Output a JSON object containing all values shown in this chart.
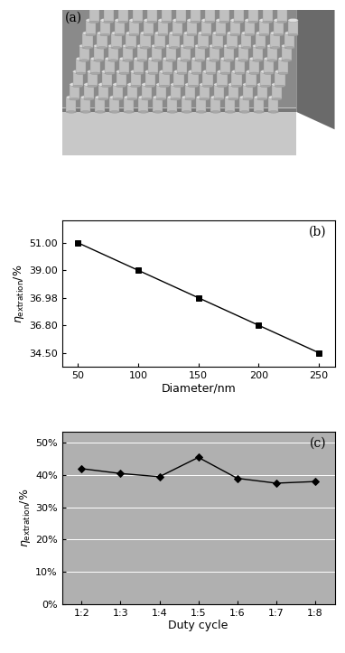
{
  "panel_b": {
    "x": [
      50,
      100,
      150,
      200,
      250
    ],
    "y": [
      4,
      3,
      2,
      1,
      0
    ],
    "ytick_positions": [
      0,
      1,
      2,
      3,
      4
    ],
    "ytick_labels": [
      "34.50",
      "36.80",
      "36.98",
      "39.00",
      "51.00"
    ],
    "xticks": [
      50,
      100,
      150,
      200,
      250
    ],
    "xlabel": "Diameter/nm",
    "label": "(b)",
    "ylim_bottom": -0.5,
    "ylim_top": 4.8
  },
  "panel_c": {
    "x": [
      0,
      1,
      2,
      3,
      4,
      5,
      6
    ],
    "y": [
      0.42,
      0.405,
      0.395,
      0.455,
      0.39,
      0.375,
      0.38
    ],
    "xtick_labels": [
      "1:2",
      "1:3",
      "1:4",
      "1:5",
      "1:6",
      "1:7",
      "1:8"
    ],
    "yticks": [
      0.0,
      0.1,
      0.2,
      0.3,
      0.4,
      0.5
    ],
    "ytick_labels": [
      "0%",
      "10%",
      "20%",
      "30%",
      "40%",
      "50%"
    ],
    "xlabel": "Duty cycle",
    "label": "(c)",
    "ylim_bottom": 0.0,
    "ylim_top": 0.535,
    "bg_color": "#b0b0b0"
  },
  "panel_a": {
    "label": "(a)",
    "dark_bg": "#8a8a8a",
    "right_wedge": "#6a6a6a",
    "light_base": "#c8c8c8",
    "pillar_body": "#c0c0c0",
    "pillar_top": "#e0e0e0",
    "pillar_bottom": "#a8a8a8",
    "pillar_edge": "#909090"
  }
}
